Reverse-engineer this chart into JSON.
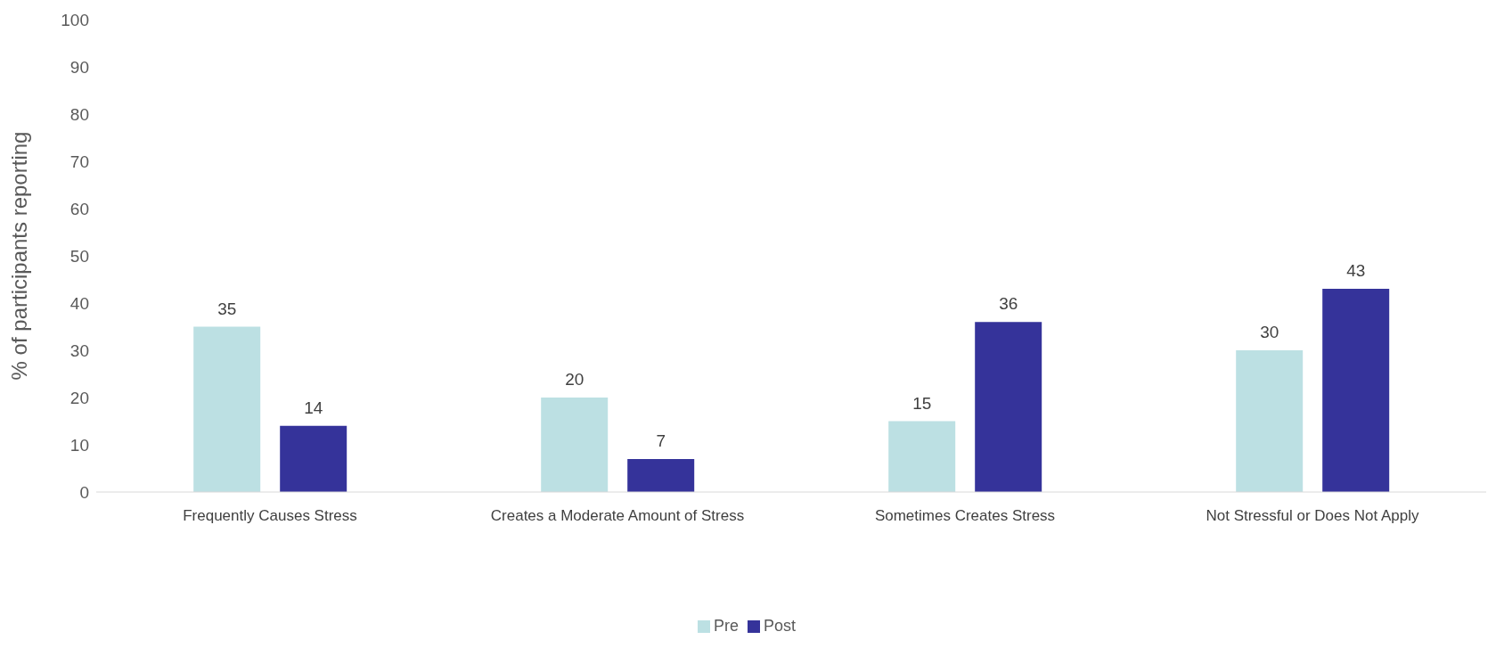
{
  "chart_data": {
    "type": "bar",
    "ylabel": "% of participants reporting",
    "categories": [
      "Frequently Causes Stress",
      "Creates a Moderate Amount of Stress",
      "Sometimes Creates Stress",
      "Not Stressful or Does Not Apply"
    ],
    "series": [
      {
        "name": "Pre",
        "color": "#bce0e3",
        "values": [
          35,
          20,
          15,
          30
        ]
      },
      {
        "name": "Post",
        "color": "#35339a",
        "values": [
          14,
          7,
          36,
          43
        ]
      }
    ],
    "ylim": [
      0,
      100
    ],
    "yticks": [
      0,
      10,
      20,
      30,
      40,
      50,
      60,
      70,
      80,
      90,
      100
    ],
    "data_labels": true,
    "legend": "bottom",
    "grid": false
  }
}
